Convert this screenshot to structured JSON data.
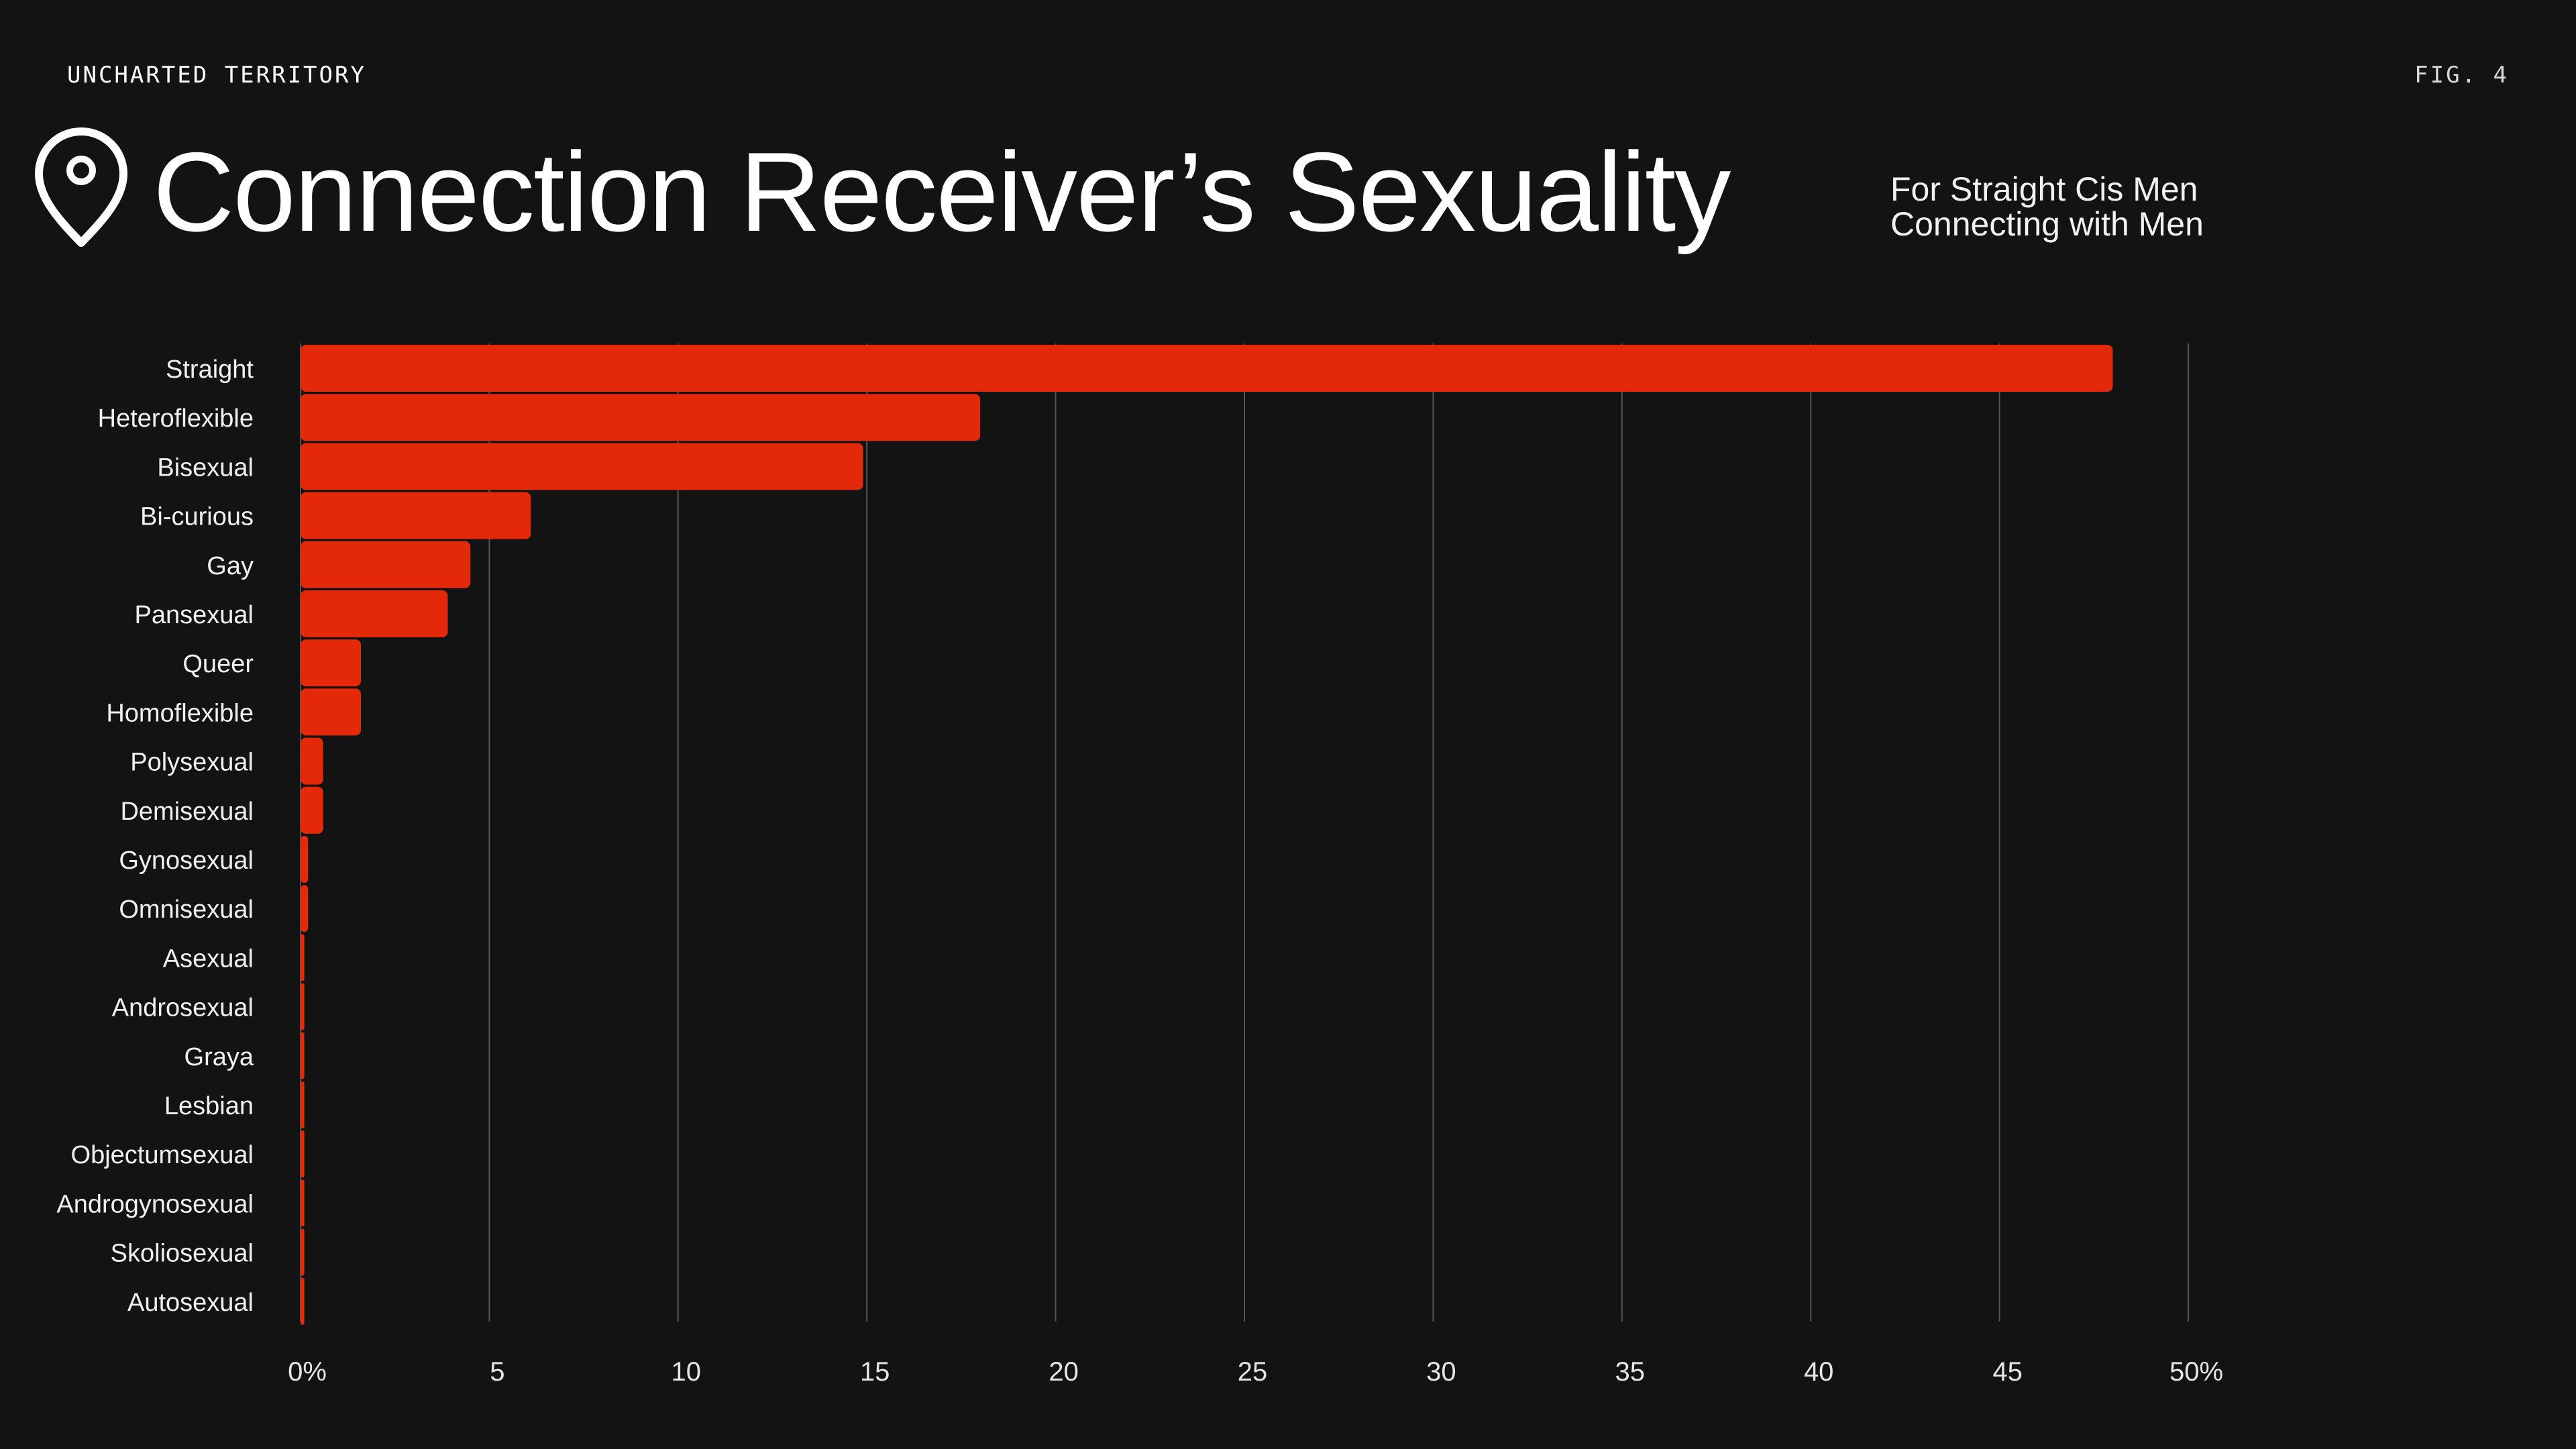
{
  "header": {
    "brand": "UNCHARTED TERRITORY",
    "figure_label": "FIG. 4",
    "icon": "map-pin-icon"
  },
  "colors": {
    "background": "#131313",
    "bar": "#E4290B",
    "grid": "#555555",
    "text": "#FFFFFF"
  },
  "chart_data": {
    "type": "bar",
    "orientation": "horizontal",
    "title": "Connection Receiver’s Sexuality",
    "subtitle_lines": [
      "For Straight Cis Men",
      "Connecting with Men"
    ],
    "categories": [
      "Straight",
      "Heteroflexible",
      "Bisexual",
      "Bi-curious",
      "Gay",
      "Pansexual",
      "Queer",
      "Homoflexible",
      "Polysexual",
      "Demisexual",
      "Gynosexual",
      "Omnisexual",
      "Asexual",
      "Androsexual",
      "Graya",
      "Lesbian",
      "Objectumsexual",
      "Androgynosexual",
      "Skoliosexual",
      "Autosexual"
    ],
    "values": [
      48.0,
      18.0,
      14.9,
      6.1,
      4.5,
      3.9,
      1.6,
      1.6,
      0.6,
      0.6,
      0.2,
      0.2,
      0.1,
      0.1,
      0.1,
      0.1,
      0.1,
      0.1,
      0.1,
      0.1
    ],
    "unit": "%",
    "xlim": [
      0,
      50
    ],
    "xticks": [
      0,
      5,
      10,
      15,
      20,
      25,
      30,
      35,
      40,
      45,
      50
    ],
    "xtick_labels": [
      "0%",
      "5",
      "10",
      "15",
      "20",
      "25",
      "30",
      "35",
      "40",
      "45",
      "50%"
    ],
    "grid": true,
    "legend": "none"
  }
}
